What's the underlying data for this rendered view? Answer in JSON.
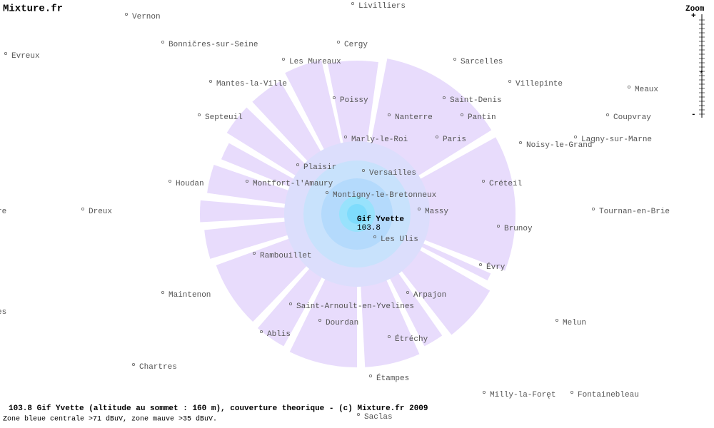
{
  "header": {
    "title": "Mixture.fr"
  },
  "zoom": {
    "label": "Zoom",
    "plus": "+",
    "minus": "-",
    "marker": "*"
  },
  "station": {
    "name": "Gif Yvette",
    "frequency": "103.8"
  },
  "cities": [
    "Vernon",
    "Livilliers",
    "Bonničres-sur-Seine",
    "Cergy",
    "Evreux",
    "Les Mureaux",
    "Sarcelles",
    "Villepinte",
    "Meaux",
    "Mantes-la-Ville",
    "Poissy",
    "Saint-Denis",
    "Septeuil",
    "Nanterre",
    "Pantin",
    "Coupvray",
    "Marly-le-Roi",
    "Paris",
    "Noisy-le-Grand",
    "Lagny-sur-Marne",
    "Plaisir",
    "Versailles",
    "Houdan",
    "Montfort-l'Amaury",
    "Créteil",
    "Montigny-le-Bretonneux",
    "re",
    "Dreux",
    "Massy",
    "Tournan-en-Brie",
    "Brunoy",
    "Les Ulis",
    "Rambouillet",
    "Évry",
    "Maintenon",
    "Arpajon",
    "Saint-Arnoult-en-Yvelines",
    "es",
    "Melun",
    "Dourdan",
    "Ablis",
    "Étréchy",
    "Chartres",
    "Étampes",
    "Milly-la-Foręt",
    "Fontainebleau",
    "Saclas"
  ],
  "footer": {
    "line1": "103.8 Gif Yvette (altitude au sommet : 160 m), couverture theorique - (c) Mixture.fr 2009",
    "line2": "Zone bleue centrale >71 dBuV, zone mauve >35 dBuV."
  }
}
